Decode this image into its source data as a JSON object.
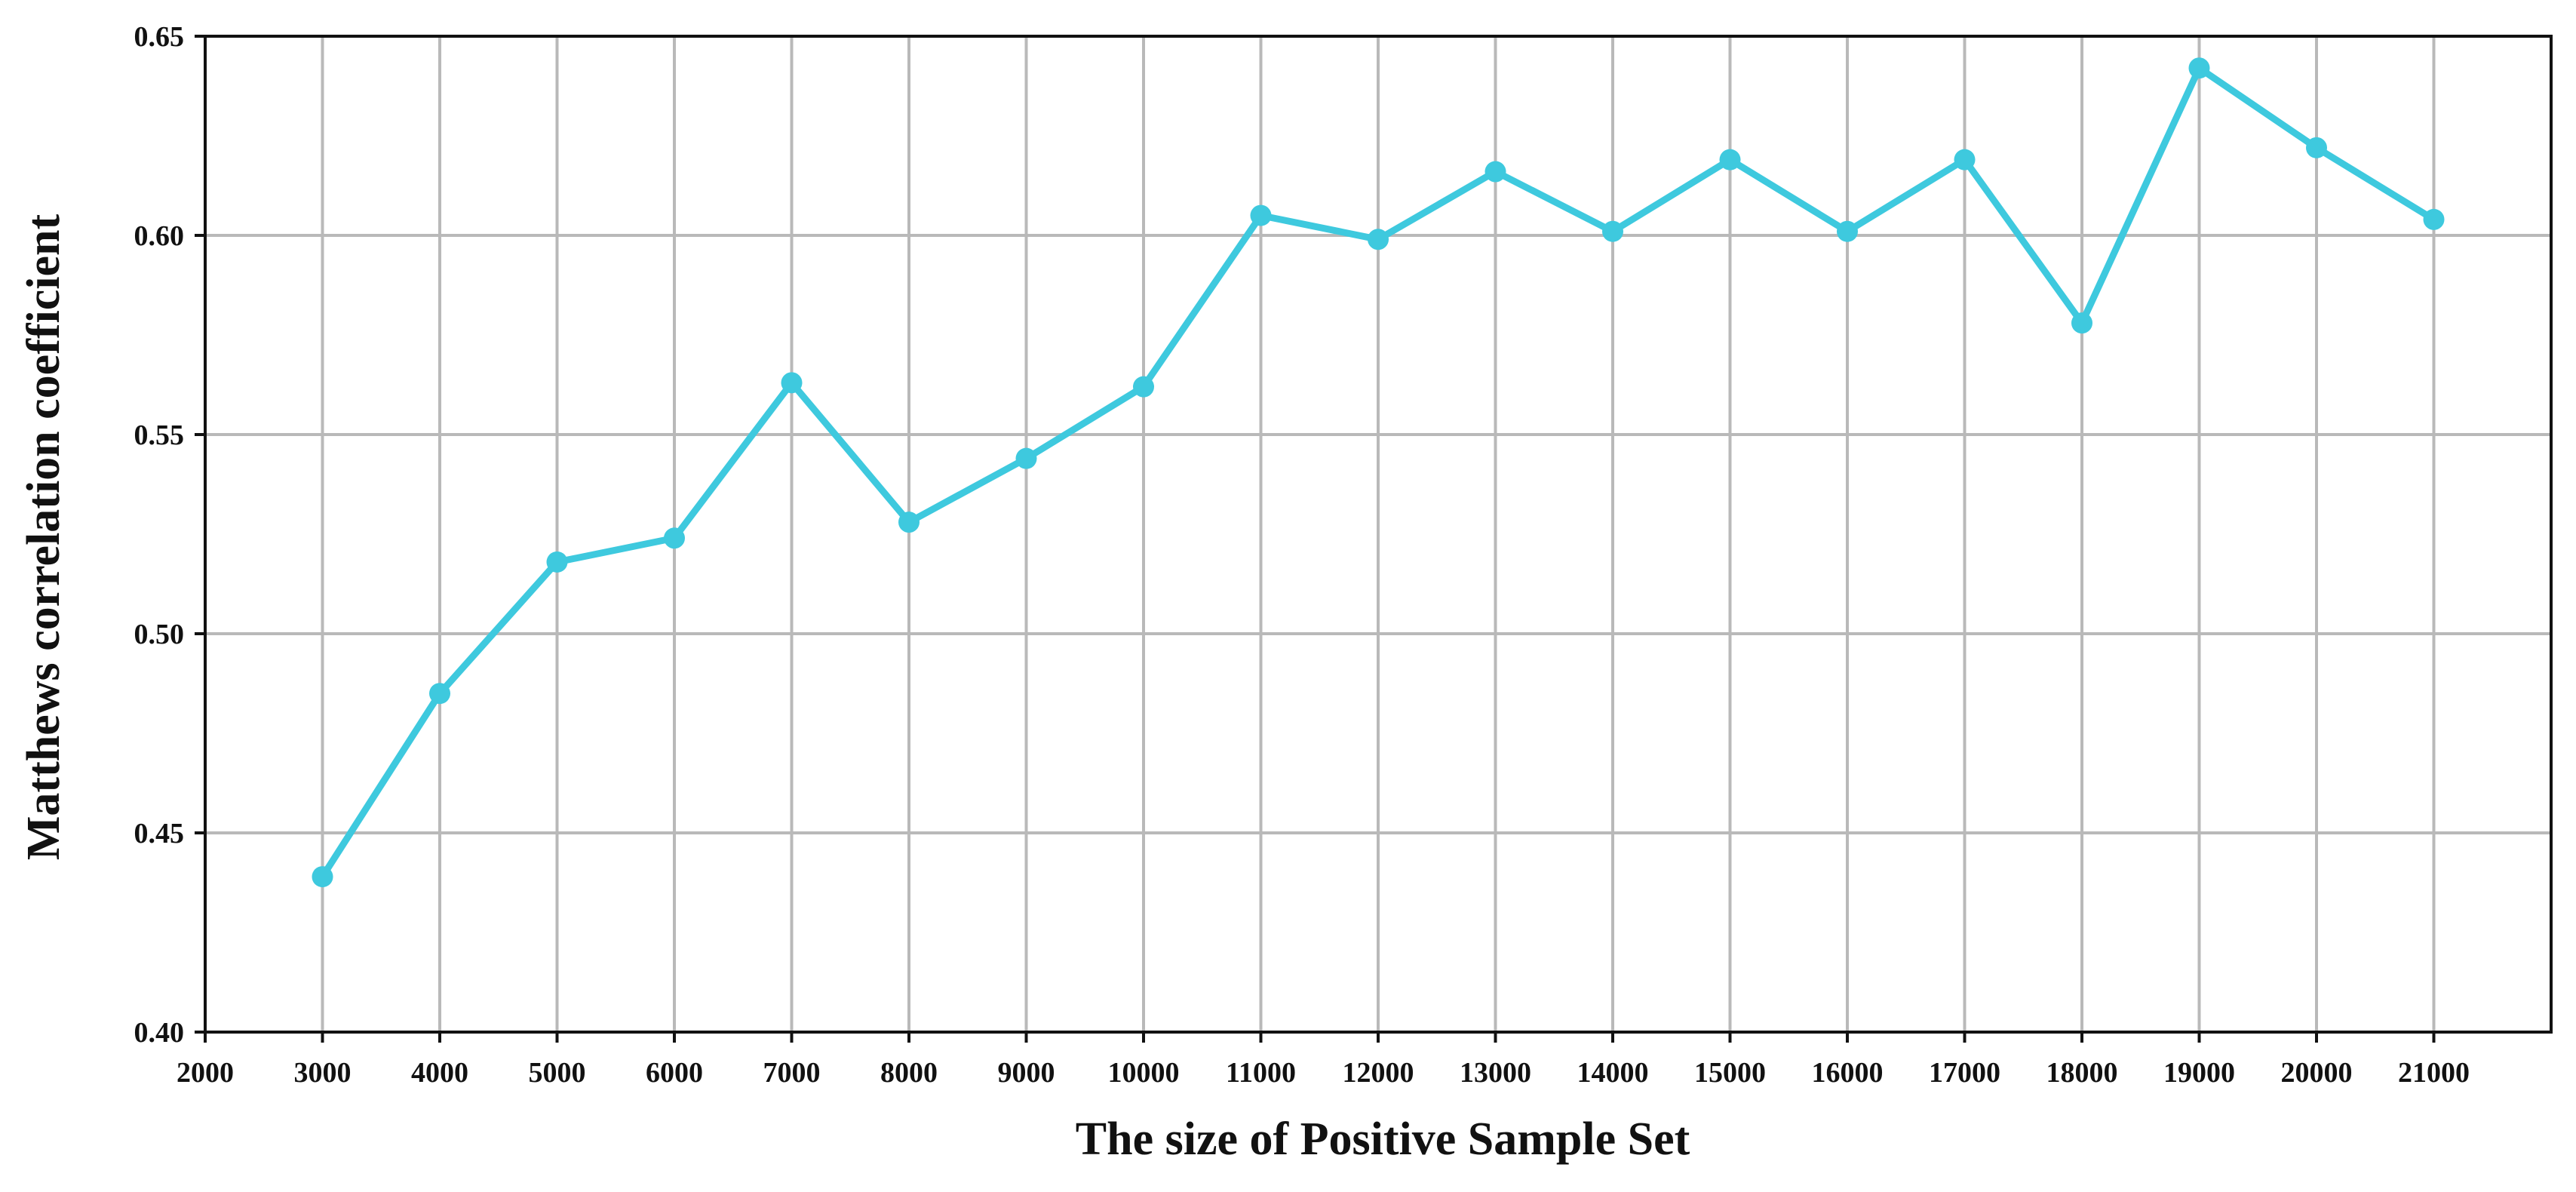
{
  "chart_data": {
    "type": "line",
    "title": "",
    "xlabel": "The size of Positive Sample Set",
    "ylabel": "Matthews correlation coefficient",
    "xlim": [
      2000,
      22000
    ],
    "ylim": [
      0.4,
      0.65
    ],
    "x_ticks": [
      2000,
      3000,
      4000,
      5000,
      6000,
      7000,
      8000,
      9000,
      10000,
      11000,
      12000,
      13000,
      14000,
      15000,
      16000,
      17000,
      18000,
      19000,
      20000,
      21000
    ],
    "x_tick_labels": [
      "2000",
      "3000",
      "4000",
      "5000",
      "6000",
      "7000",
      "8000",
      "9000",
      "10000",
      "11000",
      "12000",
      "13000",
      "14000",
      "15000",
      "16000",
      "17000",
      "18000",
      "19000",
      "20000",
      "21000"
    ],
    "y_ticks": [
      0.4,
      0.45,
      0.5,
      0.55,
      0.6,
      0.65
    ],
    "y_tick_labels": [
      "0.40",
      "0.45",
      "0.50",
      "0.55",
      "0.60",
      "0.65"
    ],
    "grid": true,
    "legend": "none",
    "series": [
      {
        "color": "#3ec9de",
        "x": [
          3000,
          4000,
          5000,
          6000,
          7000,
          8000,
          9000,
          10000,
          11000,
          12000,
          13000,
          14000,
          15000,
          16000,
          17000,
          18000,
          19000,
          20000,
          21000
        ],
        "values": [
          0.439,
          0.485,
          0.518,
          0.524,
          0.563,
          0.528,
          0.544,
          0.562,
          0.605,
          0.599,
          0.616,
          0.601,
          0.619,
          0.601,
          0.619,
          0.578,
          0.642,
          0.622,
          0.604
        ]
      }
    ]
  }
}
